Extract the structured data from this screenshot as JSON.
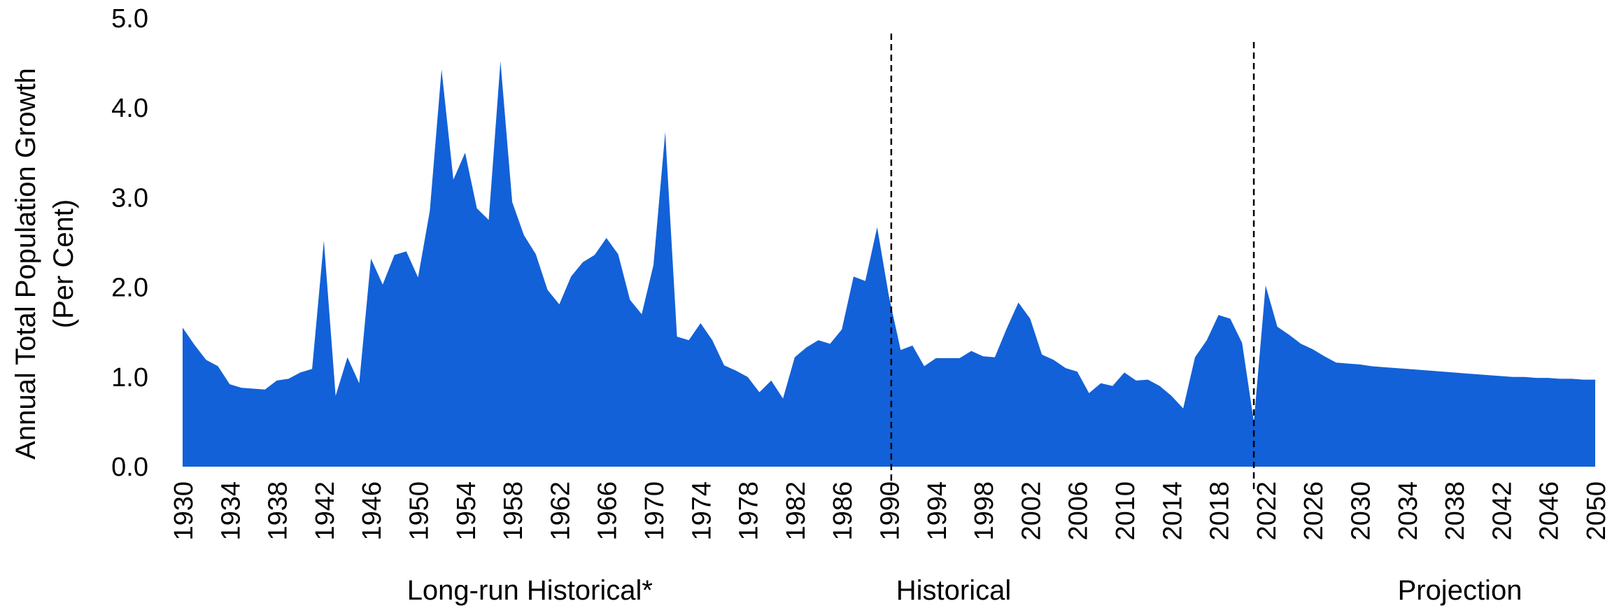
{
  "chart_data": {
    "type": "area",
    "ylabel_line1": "Annual Total Population Growth",
    "ylabel_line2": "(Per Cent)",
    "xlabel": "",
    "xlim": [
      1930,
      2050
    ],
    "ylim": [
      0,
      5
    ],
    "grid": false,
    "legend": false,
    "y_ticks": [
      "0.0",
      "1.0",
      "2.0",
      "3.0",
      "4.0",
      "5.0"
    ],
    "x_ticks": [
      1930,
      1934,
      1938,
      1942,
      1946,
      1950,
      1954,
      1958,
      1962,
      1966,
      1970,
      1974,
      1978,
      1982,
      1986,
      1990,
      1994,
      1998,
      2002,
      2006,
      2010,
      2014,
      2018,
      2022,
      2026,
      2030,
      2034,
      2038,
      2042,
      2046,
      2050
    ],
    "dividers": [
      1990.2,
      2021
    ],
    "sections": [
      {
        "label": "Long-run Historical*",
        "center": 1959.5
      },
      {
        "label": "Historical",
        "center": 1995.5
      },
      {
        "label": "Projection",
        "center": 2038.5
      }
    ],
    "series": [
      {
        "color": "#1261d8",
        "x": [
          1930,
          1931,
          1932,
          1933,
          1934,
          1935,
          1936,
          1937,
          1938,
          1939,
          1940,
          1941,
          1942,
          1943,
          1944,
          1945,
          1946,
          1947,
          1948,
          1949,
          1950,
          1951,
          1952,
          1953,
          1954,
          1955,
          1956,
          1957,
          1958,
          1959,
          1960,
          1961,
          1962,
          1963,
          1964,
          1965,
          1966,
          1967,
          1968,
          1969,
          1970,
          1971,
          1972,
          1973,
          1974,
          1975,
          1976,
          1977,
          1978,
          1979,
          1980,
          1981,
          1982,
          1983,
          1984,
          1985,
          1986,
          1987,
          1988,
          1989,
          1990,
          1991,
          1992,
          1993,
          1994,
          1995,
          1996,
          1997,
          1998,
          1999,
          2000,
          2001,
          2002,
          2003,
          2004,
          2005,
          2006,
          2007,
          2008,
          2009,
          2010,
          2011,
          2012,
          2013,
          2014,
          2015,
          2016,
          2017,
          2018,
          2019,
          2020,
          2021,
          2022,
          2023,
          2024,
          2025,
          2026,
          2027,
          2028,
          2029,
          2030,
          2031,
          2032,
          2033,
          2034,
          2035,
          2036,
          2037,
          2038,
          2039,
          2040,
          2041,
          2042,
          2043,
          2044,
          2045,
          2046,
          2047,
          2048,
          2049,
          2050
        ],
        "y": [
          1.55,
          1.36,
          1.19,
          1.12,
          0.92,
          0.88,
          0.87,
          0.86,
          0.96,
          0.98,
          1.05,
          1.09,
          2.52,
          0.79,
          1.22,
          0.93,
          2.32,
          2.03,
          2.36,
          2.4,
          2.11,
          2.85,
          4.43,
          3.2,
          3.5,
          2.88,
          2.75,
          4.52,
          2.95,
          2.58,
          2.37,
          1.97,
          1.81,
          2.12,
          2.28,
          2.36,
          2.55,
          2.37,
          1.86,
          1.7,
          2.25,
          3.73,
          1.45,
          1.41,
          1.6,
          1.41,
          1.13,
          1.07,
          1.0,
          0.83,
          0.96,
          0.76,
          1.22,
          1.33,
          1.41,
          1.37,
          1.53,
          2.12,
          2.07,
          2.67,
          1.9,
          1.3,
          1.35,
          1.12,
          1.21,
          1.21,
          1.21,
          1.29,
          1.23,
          1.22,
          1.54,
          1.83,
          1.65,
          1.25,
          1.19,
          1.1,
          1.06,
          0.82,
          0.93,
          0.9,
          1.05,
          0.96,
          0.97,
          0.9,
          0.79,
          0.65,
          1.22,
          1.41,
          1.69,
          1.65,
          1.38,
          0.5,
          2.02,
          1.56,
          1.47,
          1.37,
          1.31,
          1.23,
          1.16,
          1.15,
          1.14,
          1.12,
          1.11,
          1.1,
          1.09,
          1.08,
          1.07,
          1.06,
          1.05,
          1.04,
          1.03,
          1.02,
          1.01,
          1.0,
          1.0,
          0.99,
          0.99,
          0.98,
          0.98,
          0.97,
          0.97
        ]
      }
    ]
  }
}
